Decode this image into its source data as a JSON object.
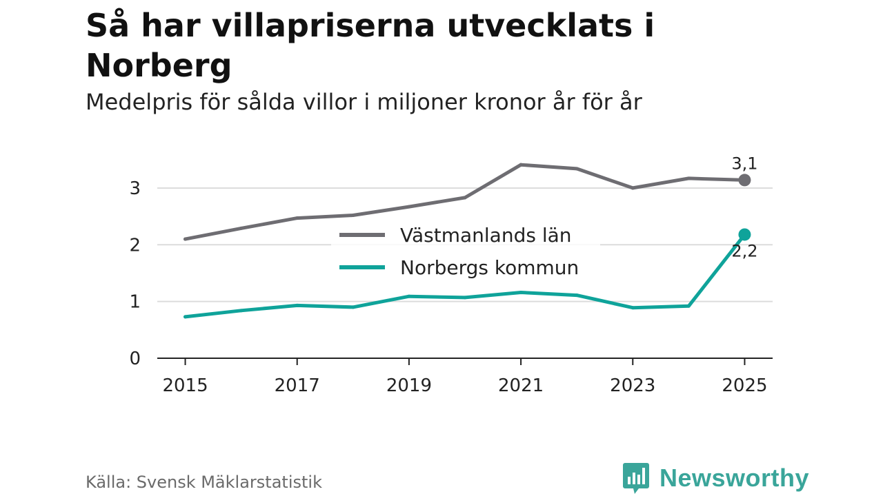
{
  "header": {
    "title": "Så har villapriserna utvecklats i Norberg",
    "subtitle": "Medelpris för sålda villor i miljoner kronor år för år"
  },
  "chart_data": {
    "type": "line",
    "title": "Så har villapriserna utvecklats i Norberg",
    "subtitle": "Medelpris för sålda villor i miljoner kronor år för år",
    "xlabel": "",
    "ylabel": "",
    "x": [
      2015,
      2016,
      2017,
      2018,
      2019,
      2020,
      2021,
      2022,
      2023,
      2024,
      2025
    ],
    "x_tick_labels": [
      "2015",
      "2017",
      "2019",
      "2021",
      "2023",
      "2025"
    ],
    "x_ticks": [
      2015,
      2017,
      2019,
      2021,
      2023,
      2025
    ],
    "y_ticks": [
      0,
      1,
      2,
      3
    ],
    "y_tick_labels": [
      "0",
      "1",
      "2",
      "3"
    ],
    "ylim": [
      0,
      3.4
    ],
    "xlim": [
      2014.5,
      2025.5
    ],
    "grid": true,
    "legend_position": "center",
    "series": [
      {
        "name": "Västmanlands län",
        "color": "#6e6d72",
        "values": [
          2.1,
          2.29,
          2.47,
          2.52,
          2.67,
          2.83,
          3.41,
          3.34,
          3.0,
          3.17,
          3.14
        ],
        "end_label": "3,1"
      },
      {
        "name": "Norbergs kommun",
        "color": "#0fa39a",
        "values": [
          0.73,
          0.84,
          0.93,
          0.9,
          1.09,
          1.07,
          1.16,
          1.11,
          0.89,
          0.92,
          2.18
        ],
        "end_label": "2,2"
      }
    ]
  },
  "footer": {
    "source": "Källa: Svensk Mäklarstatistik",
    "brand": "Newsworthy",
    "brand_color": "#3aa59a"
  }
}
